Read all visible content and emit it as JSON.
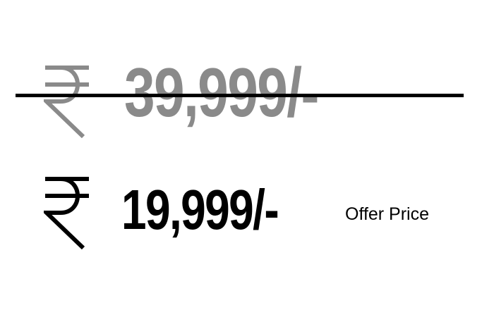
{
  "price": {
    "original": {
      "currency_icon": "rupee-icon",
      "amount": "39,999/-",
      "color": "#8a8a8a",
      "struck_through": true
    },
    "offer": {
      "currency_icon": "rupee-icon",
      "amount": "19,999/-",
      "color": "#000000",
      "label": "Offer Price"
    }
  }
}
